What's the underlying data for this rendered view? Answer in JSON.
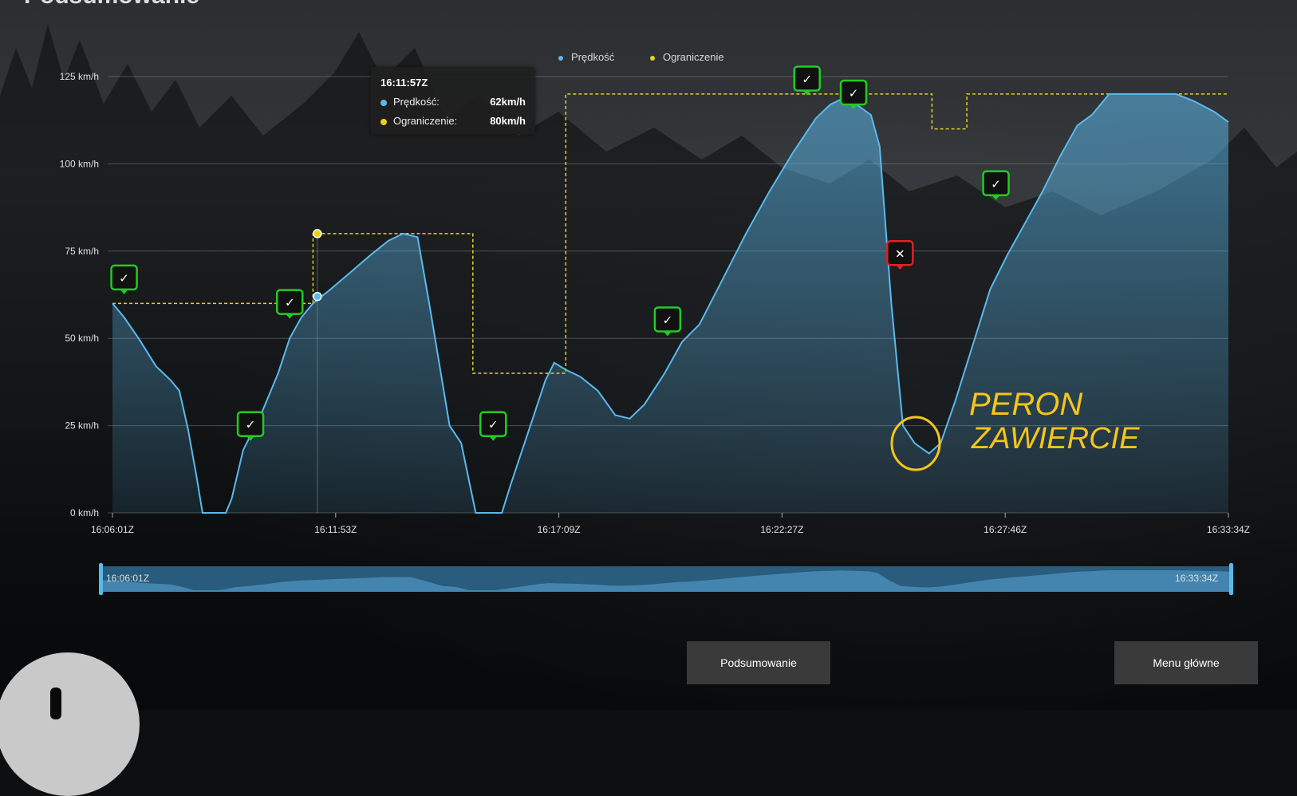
{
  "header": {
    "title_fragment": "Podsumowanie"
  },
  "legend": {
    "speed_label": "Prędkość",
    "limit_label": "Ograniczenie"
  },
  "colors": {
    "speed": "#5ab9ec",
    "limit": "#e6d21e",
    "marker_ok": "#22cc22",
    "marker_bad": "#dd2222"
  },
  "chart_data": {
    "type": "line",
    "ylim": [
      0,
      125
    ],
    "y_ticks": [
      "0 km/h",
      "25 km/h",
      "50 km/h",
      "75 km/h",
      "100 km/h",
      "125 km/h"
    ],
    "x_ticks": [
      "16:06:01Z",
      "16:11:53Z",
      "16:17:09Z",
      "16:22:27Z",
      "16:27:46Z",
      "16:33:34Z"
    ],
    "series": [
      {
        "name": "Prędkość",
        "points": [
          [
            0,
            60
          ],
          [
            8,
            56
          ],
          [
            18,
            50
          ],
          [
            30,
            42
          ],
          [
            40,
            38
          ],
          [
            46,
            35
          ],
          [
            52,
            24
          ],
          [
            58,
            10
          ],
          [
            62,
            0
          ],
          [
            78,
            0
          ],
          [
            82,
            4
          ],
          [
            90,
            18
          ],
          [
            102,
            28
          ],
          [
            114,
            40
          ],
          [
            122,
            50
          ],
          [
            130,
            56
          ],
          [
            138,
            60
          ],
          [
            150,
            64
          ],
          [
            164,
            69
          ],
          [
            178,
            74
          ],
          [
            190,
            78
          ],
          [
            200,
            80
          ],
          [
            210,
            79
          ],
          [
            218,
            60
          ],
          [
            226,
            40
          ],
          [
            232,
            25
          ],
          [
            240,
            20
          ],
          [
            246,
            8
          ],
          [
            250,
            0
          ],
          [
            268,
            0
          ],
          [
            274,
            8
          ],
          [
            282,
            18
          ],
          [
            290,
            28
          ],
          [
            298,
            38
          ],
          [
            304,
            43
          ],
          [
            312,
            41
          ],
          [
            322,
            39
          ],
          [
            334,
            35
          ],
          [
            346,
            28
          ],
          [
            356,
            27
          ],
          [
            366,
            31
          ],
          [
            380,
            40
          ],
          [
            392,
            49
          ],
          [
            404,
            54
          ],
          [
            420,
            67
          ],
          [
            436,
            80
          ],
          [
            452,
            92
          ],
          [
            468,
            103
          ],
          [
            484,
            113
          ],
          [
            494,
            117
          ],
          [
            504,
            119
          ],
          [
            512,
            117
          ],
          [
            522,
            114
          ],
          [
            528,
            105
          ],
          [
            536,
            60
          ],
          [
            544,
            25
          ],
          [
            552,
            20
          ],
          [
            562,
            17
          ],
          [
            570,
            20
          ],
          [
            580,
            32
          ],
          [
            592,
            48
          ],
          [
            604,
            64
          ],
          [
            616,
            74
          ],
          [
            628,
            83
          ],
          [
            640,
            92
          ],
          [
            652,
            102
          ],
          [
            664,
            111
          ],
          [
            674,
            114
          ],
          [
            686,
            120
          ],
          [
            702,
            120
          ],
          [
            720,
            120
          ],
          [
            732,
            120
          ],
          [
            744,
            118
          ],
          [
            758,
            115
          ],
          [
            768,
            112
          ]
        ]
      },
      {
        "name": "Ograniczenie",
        "points": [
          [
            0,
            60
          ],
          [
            138,
            60
          ],
          [
            138,
            80
          ],
          [
            248,
            80
          ],
          [
            248,
            40
          ],
          [
            304,
            40
          ],
          [
            304,
            40
          ],
          [
            312,
            40
          ],
          [
            312,
            120
          ],
          [
            540,
            120
          ],
          [
            540,
            120
          ],
          [
            564,
            120
          ],
          [
            564,
            110
          ],
          [
            588,
            110
          ],
          [
            588,
            120
          ],
          [
            768,
            120
          ]
        ]
      }
    ],
    "x_range": [
      0,
      768
    ],
    "tooltip": {
      "time": "16:11:57Z",
      "speed_label": "Prędkość:",
      "speed_value": "62km/h",
      "limit_label": "Ograniczenie:",
      "limit_value": "80km/h"
    },
    "markers": [
      {
        "x": 8,
        "y": 64,
        "icon": "radio-check-icon",
        "status": "ok"
      },
      {
        "x": 95,
        "y": 22,
        "icon": "signal-check-icon",
        "status": "ok"
      },
      {
        "x": 122,
        "y": 57,
        "icon": "radio-check-icon",
        "status": "ok"
      },
      {
        "x": 262,
        "y": 22,
        "icon": "signal-check-icon",
        "status": "ok"
      },
      {
        "x": 382,
        "y": 52,
        "icon": "signal-check-icon",
        "status": "ok"
      },
      {
        "x": 478,
        "y": 121,
        "icon": "signal-check-icon",
        "status": "ok"
      },
      {
        "x": 510,
        "y": 117,
        "icon": "signal-check-icon",
        "status": "ok"
      },
      {
        "x": 542,
        "y": 71,
        "icon": "horn-cross-icon",
        "status": "bad"
      },
      {
        "x": 608,
        "y": 91,
        "icon": "radio-check-icon",
        "status": "ok"
      }
    ],
    "annotation": {
      "text_line1": "PERON",
      "text_line2": "ZAWIERCIE"
    }
  },
  "navigator": {
    "start_label": "16:06:01Z",
    "end_label": "16:33:34Z"
  },
  "buttons": {
    "summary": "Podsumowanie",
    "main_menu": "Menu główne"
  }
}
